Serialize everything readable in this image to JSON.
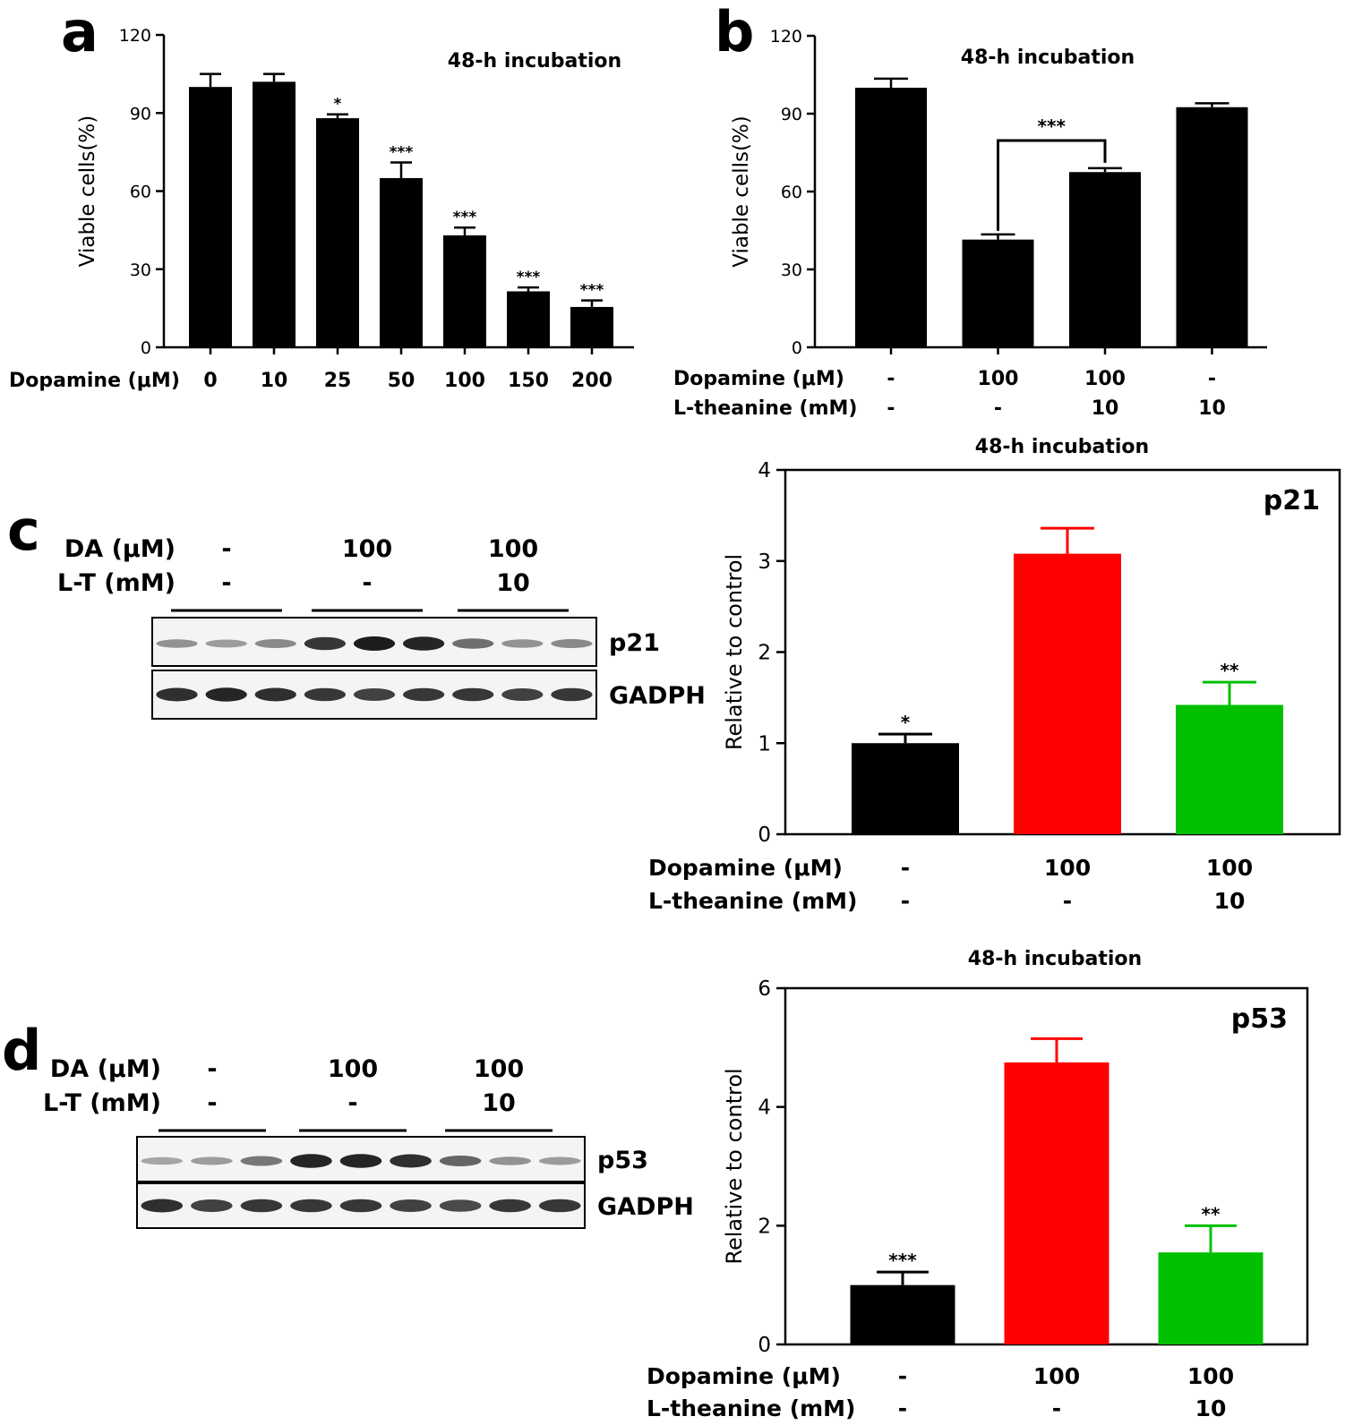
{
  "panels": {
    "a": "a",
    "b": "b",
    "c": "c",
    "d": "d"
  },
  "chart_data": [
    {
      "panel": "a",
      "type": "bar",
      "title": "48-h incubation",
      "xlabel": "Dopamine (μM)",
      "ylabel": "Viable cells(%)",
      "categories": [
        "0",
        "10",
        "25",
        "50",
        "100",
        "150",
        "200"
      ],
      "values": [
        100,
        102,
        88,
        65,
        43,
        21.5,
        15.5
      ],
      "errors": [
        5,
        3,
        1.5,
        6,
        3,
        1.5,
        2.5
      ],
      "significance": [
        "",
        "",
        "*",
        "***",
        "***",
        "***",
        "***"
      ],
      "ylim": [
        0,
        120
      ],
      "yticks": [
        "0",
        "30",
        "60",
        "90",
        "120"
      ],
      "colors": [
        "#000000"
      ]
    },
    {
      "panel": "b",
      "type": "bar",
      "title": "48-h incubation",
      "ylabel": "Viable cells(%)",
      "condition_rows": [
        {
          "label": "Dopamine (μM)",
          "values": [
            "-",
            "100",
            "100",
            "-"
          ]
        },
        {
          "label": "L-theanine (mM)",
          "values": [
            "-",
            "-",
            "10",
            "10"
          ]
        }
      ],
      "values": [
        100,
        41.5,
        67.5,
        92.5
      ],
      "errors": [
        3.5,
        2,
        1.5,
        1.5
      ],
      "bracket": {
        "from": 1,
        "to": 2,
        "label": "***"
      },
      "ylim": [
        0,
        120
      ],
      "yticks": [
        "0",
        "30",
        "60",
        "90",
        "120"
      ],
      "colors": [
        "#000000"
      ]
    },
    {
      "panel": "c",
      "type": "bar",
      "title": "48-h incubation",
      "inset_label": "p21",
      "ylabel": "Relative to control",
      "condition_rows": [
        {
          "label": "Dopamine (μM)",
          "values": [
            "-",
            "100",
            "100"
          ]
        },
        {
          "label": "L-theanine (mM)",
          "values": [
            "-",
            "-",
            "10"
          ]
        }
      ],
      "values": [
        1.0,
        3.08,
        1.42
      ],
      "errors": [
        0.1,
        0.28,
        0.25
      ],
      "significance": [
        "*",
        "",
        "**"
      ],
      "ylim": [
        0,
        4
      ],
      "yticks": [
        "0",
        "1",
        "2",
        "3",
        "4"
      ],
      "colors": [
        "#000000",
        "#ff0000",
        "#00c000"
      ]
    },
    {
      "panel": "d",
      "type": "bar",
      "title": "48-h incubation",
      "inset_label": "p53",
      "ylabel": "Relative to control",
      "condition_rows": [
        {
          "label": "Dopamine (μM)",
          "values": [
            "-",
            "100",
            "100"
          ]
        },
        {
          "label": "L-theanine (mM)",
          "values": [
            "-",
            "-",
            "10"
          ]
        }
      ],
      "values": [
        1.0,
        4.75,
        1.55
      ],
      "errors": [
        0.22,
        0.4,
        0.45
      ],
      "significance": [
        "***",
        "",
        "**"
      ],
      "ylim": [
        0,
        6
      ],
      "yticks": [
        "0",
        "2",
        "4",
        "6"
      ],
      "colors": [
        "#000000",
        "#ff0000",
        "#00c000"
      ]
    }
  ],
  "blots": [
    {
      "panel": "c",
      "rows": [
        {
          "label": "DA (μM)",
          "values": [
            "-",
            "100",
            "100"
          ]
        },
        {
          "label": "L-T (mM)",
          "values": [
            "-",
            "-",
            "10"
          ]
        }
      ],
      "proteins": [
        "p21",
        "GADPH"
      ],
      "band_intensity": [
        [
          0.35,
          0.3,
          0.4,
          0.85,
          1.0,
          0.95,
          0.55,
          0.35,
          0.4
        ],
        [
          0.9,
          0.95,
          0.9,
          0.85,
          0.8,
          0.85,
          0.85,
          0.8,
          0.85
        ]
      ]
    },
    {
      "panel": "d",
      "rows": [
        {
          "label": "DA (μM)",
          "values": [
            "-",
            "100",
            "100"
          ]
        },
        {
          "label": "L-T (mM)",
          "values": [
            "-",
            "-",
            "10"
          ]
        }
      ],
      "proteins": [
        "p53",
        "GADPH"
      ],
      "band_intensity": [
        [
          0.25,
          0.3,
          0.5,
          0.95,
          0.95,
          0.9,
          0.6,
          0.35,
          0.3
        ],
        [
          0.9,
          0.8,
          0.85,
          0.85,
          0.85,
          0.8,
          0.75,
          0.85,
          0.85
        ]
      ]
    }
  ]
}
